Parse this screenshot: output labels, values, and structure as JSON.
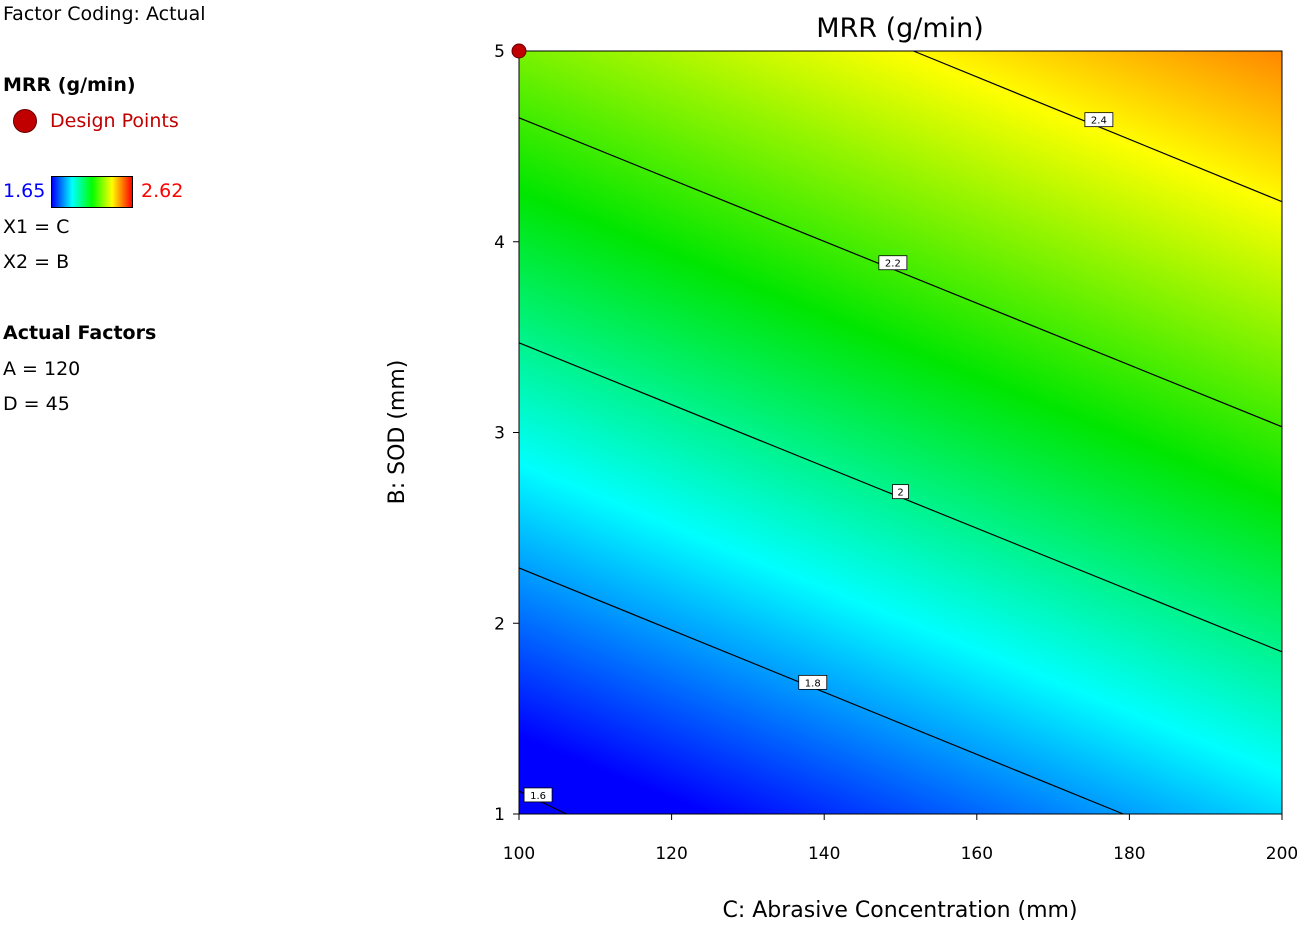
{
  "legend": {
    "factor_coding": "Factor Coding: Actual",
    "response_title": "MRR (g/min)",
    "design_points_label": "Design Points",
    "scale_min": "1.65",
    "scale_max": "2.62",
    "x1": "X1 = C",
    "x2": "X2 = B",
    "actual_factors_title": "Actual Factors",
    "factor_a": "A = 120",
    "factor_d": "D = 45"
  },
  "colors": {
    "design_point": "#c00000",
    "scale_min_text": "#0000ff",
    "scale_max_text": "#ff0000"
  },
  "chart_data": {
    "type": "contour",
    "title": "MRR (g/min)",
    "xlabel": "C: Abrasive Concentration (mm)",
    "ylabel": "B: SOD (mm)",
    "xlim": [
      100,
      200
    ],
    "ylim": [
      1,
      5
    ],
    "xticks": [
      "100",
      "120",
      "140",
      "160",
      "180",
      "200"
    ],
    "yticks": [
      "1",
      "2",
      "3",
      "4",
      "5"
    ],
    "color_range": [
      1.65,
      2.62
    ],
    "contours": [
      {
        "level": "2.4",
        "points": [
          [
            151.7,
            5
          ],
          [
            200,
            4.21
          ]
        ],
        "label_at": [
          176,
          4.64
        ]
      },
      {
        "level": "2.2",
        "points": [
          [
            100,
            4.65
          ],
          [
            200,
            3.03
          ]
        ],
        "label_at": [
          149,
          3.89
        ]
      },
      {
        "level": "2",
        "points": [
          [
            100,
            3.47
          ],
          [
            200,
            1.85
          ]
        ],
        "label_at": [
          150,
          2.69
        ]
      },
      {
        "level": "1.8",
        "points": [
          [
            100,
            2.29
          ],
          [
            179.2,
            1
          ]
        ],
        "label_at": [
          138.5,
          1.69
        ]
      },
      {
        "level": "1.6",
        "points": [
          [
            100,
            1.12
          ],
          [
            106.2,
            1
          ]
        ],
        "label_at": [
          102.5,
          1.1
        ]
      }
    ],
    "design_points": [
      [
        100,
        5
      ]
    ]
  }
}
